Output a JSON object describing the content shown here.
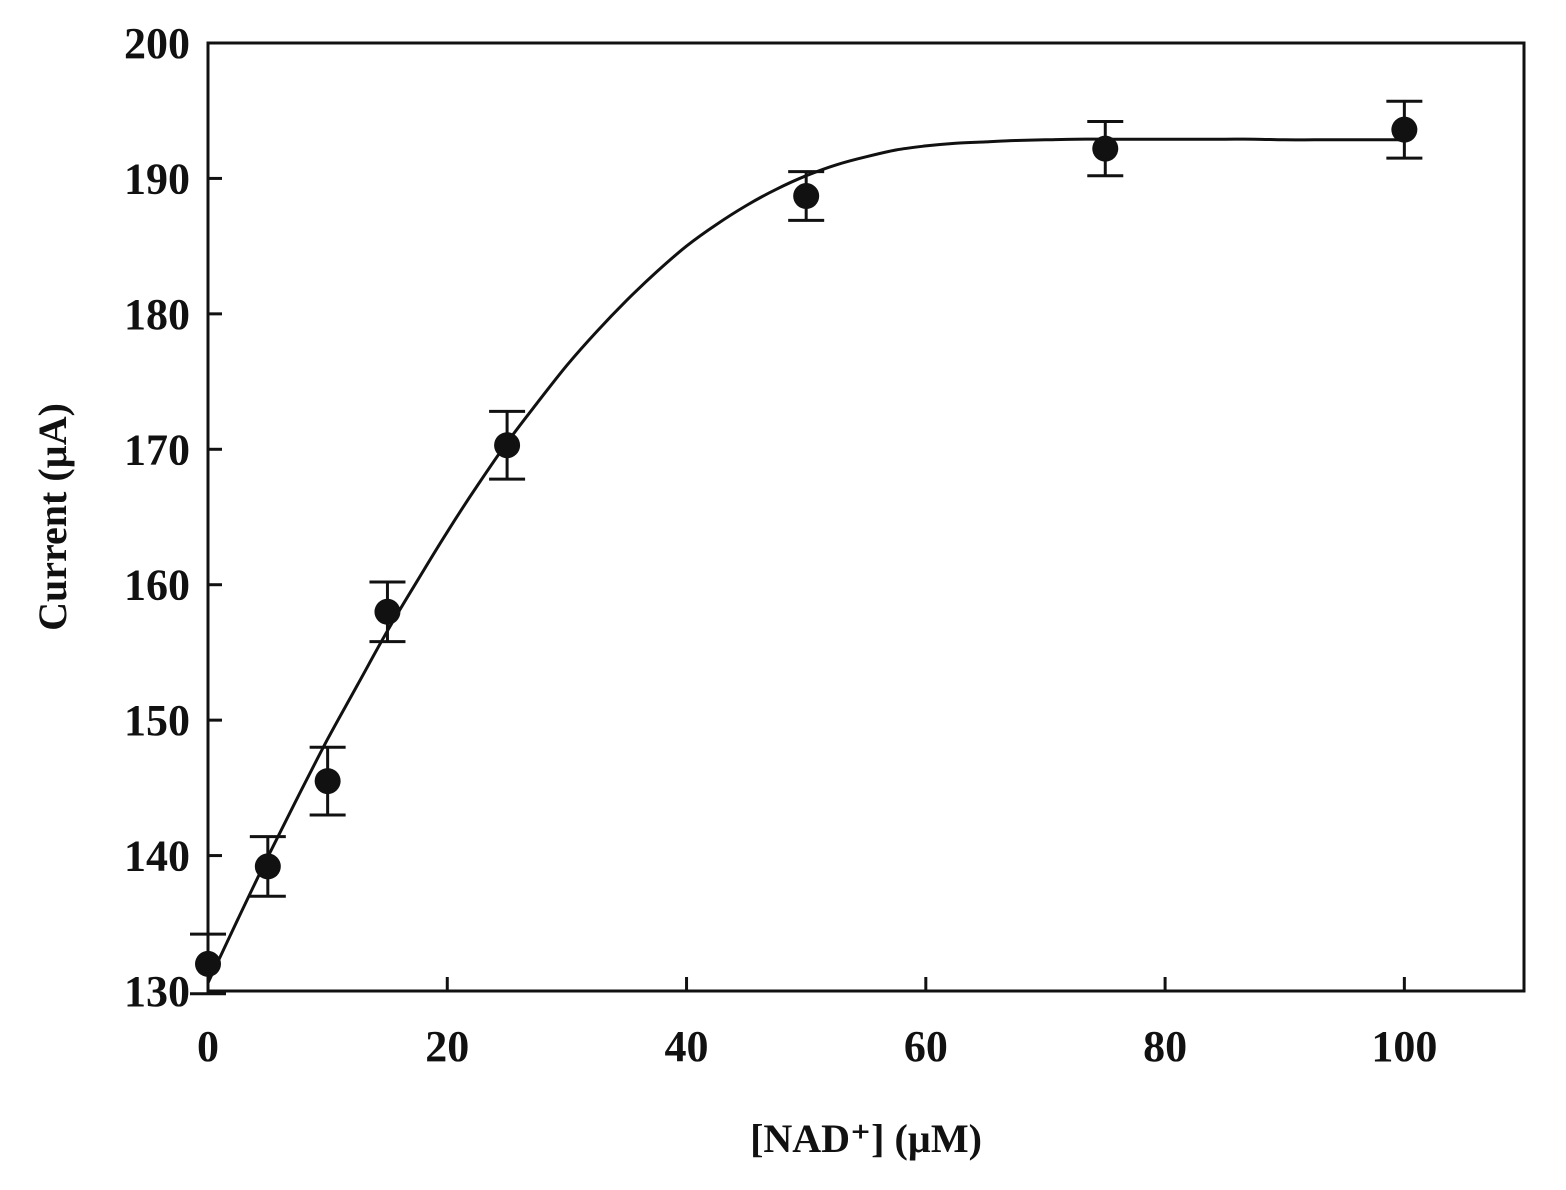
{
  "chart_data": {
    "type": "scatter",
    "title": "",
    "xlabel": "[NAD⁺] (µM)",
    "ylabel": "Current (µA)",
    "xlim": [
      0,
      110
    ],
    "ylim": [
      130,
      200
    ],
    "xticks": [
      0,
      20,
      40,
      60,
      80,
      100
    ],
    "yticks": [
      130,
      140,
      150,
      160,
      170,
      180,
      190,
      200
    ],
    "grid": false,
    "series": [
      {
        "x": [
          0,
          5,
          10,
          15,
          25,
          50,
          75,
          100
        ],
        "y": [
          132.0,
          139.2,
          145.5,
          158.0,
          170.3,
          188.7,
          192.2,
          193.6
        ],
        "error": [
          2.2,
          2.2,
          2.5,
          2.2,
          2.5,
          1.8,
          2.0,
          2.1
        ],
        "marker": "filled-circle",
        "color": "#111111"
      }
    ],
    "fit_curve": {
      "x": [
        0,
        2.5,
        5,
        7.5,
        10,
        12.5,
        15,
        17.5,
        20,
        22.5,
        25,
        27.5,
        30,
        32.5,
        35,
        37.5,
        40,
        42.5,
        45,
        47.5,
        50,
        52.5,
        55,
        57.5,
        60,
        62.5,
        65,
        67.5,
        70,
        72.5,
        75,
        77.5,
        80,
        82.5,
        85,
        87.5,
        90,
        92.5,
        95,
        97.5,
        100
      ],
      "y": [
        130.6,
        135.3,
        139.9,
        144.3,
        148.6,
        152.6,
        156.6,
        160.3,
        163.9,
        167.3,
        170.5,
        173.4,
        176.2,
        178.7,
        181.0,
        183.1,
        185.0,
        186.6,
        188.0,
        189.2,
        190.2,
        191.0,
        191.6,
        192.1,
        192.4,
        192.6,
        192.7,
        192.8,
        192.85,
        192.9,
        192.9,
        192.9,
        192.9,
        192.9,
        192.9,
        192.9,
        192.85,
        192.85,
        192.85,
        192.85,
        192.85
      ],
      "color": "#111111"
    }
  }
}
